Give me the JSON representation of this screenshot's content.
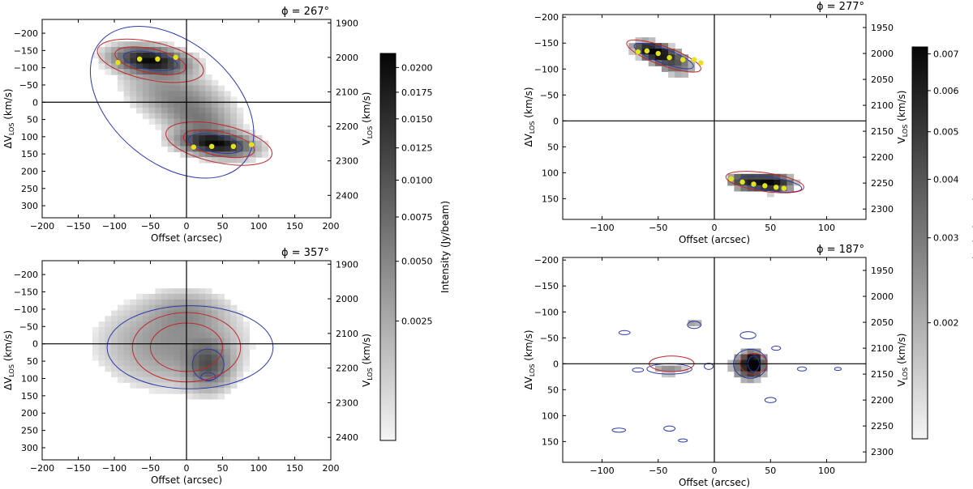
{
  "chart_data": [
    {
      "id": "p267",
      "type": "heatmap",
      "title": "ϕ = 267°",
      "xlabel": "Offset (arcsec)",
      "ylabel": "ΔV_LOS (km/s)",
      "ylabel_right": "V_LOS (km/s)",
      "xlim": [
        -200,
        200
      ],
      "ylim": [
        -240,
        335
      ],
      "y_inverted": true,
      "xticks": [
        -200,
        -150,
        -100,
        -50,
        0,
        50,
        100,
        150,
        200
      ],
      "yticks": [
        -200,
        -150,
        -100,
        -50,
        0,
        50,
        100,
        150,
        200,
        250,
        300
      ],
      "right_ticks": [
        1900,
        2000,
        2100,
        2200,
        2300,
        2400
      ],
      "v_sys": 2130,
      "blobs": [
        {
          "x": -50,
          "y": -120,
          "sx": 28,
          "sy": 22,
          "peak": 0.0205,
          "tilt": 0.2
        },
        {
          "x": 40,
          "y": 120,
          "sx": 28,
          "sy": 20,
          "peak": 0.0205,
          "tilt": 0.2
        },
        {
          "x": -10,
          "y": -10,
          "sx": 40,
          "sy": 45,
          "peak": 0.005,
          "tilt": 0.6
        },
        {
          "x": 20,
          "y": 60,
          "sx": 25,
          "sy": 30,
          "peak": 0.004,
          "tilt": 0.4
        }
      ],
      "red_contours": [
        {
          "x": -50,
          "y": -120,
          "rx": 50,
          "ry": 35,
          "rot": 12
        },
        {
          "x": -50,
          "y": -120,
          "rx": 75,
          "ry": 55,
          "rot": 12
        },
        {
          "x": 45,
          "y": 120,
          "rx": 50,
          "ry": 35,
          "rot": 12
        },
        {
          "x": 45,
          "y": 120,
          "rx": 75,
          "ry": 55,
          "rot": 12
        }
      ],
      "blue_contours": [
        {
          "x": -50,
          "y": -120,
          "rx": 38,
          "ry": 25,
          "rot": 10
        },
        {
          "x": 40,
          "y": 120,
          "rx": 38,
          "ry": 25,
          "rot": 10
        },
        {
          "x": -20,
          "y": 0,
          "rx": 130,
          "ry": 175,
          "rot": 40
        }
      ],
      "points": [
        [
          -95,
          -115
        ],
        [
          -65,
          -125
        ],
        [
          -40,
          -125
        ],
        [
          -15,
          -130
        ],
        [
          10,
          130
        ],
        [
          35,
          128
        ],
        [
          65,
          128
        ],
        [
          90,
          123
        ]
      ],
      "colorbar": {
        "label": "Intensity (Jy/beam)",
        "ticks": [
          0.0025,
          0.005,
          0.0075,
          0.01,
          0.0125,
          0.015,
          0.0175,
          0.02
        ],
        "tick_labels": [
          "0.0025",
          "0.0050",
          "0.0075",
          "0.0100",
          "0.0125",
          "0.0150",
          "0.0175",
          "0.0200"
        ],
        "min": 0.0005,
        "max": 0.0215,
        "scale": "sqrt"
      }
    },
    {
      "id": "p357",
      "type": "heatmap",
      "title": "ϕ = 357°",
      "xlabel": "Offset (arcsec)",
      "ylabel": "ΔV_LOS (km/s)",
      "ylabel_right": "V_LOS (km/s)",
      "xlim": [
        -200,
        200
      ],
      "ylim": [
        -240,
        335
      ],
      "y_inverted": true,
      "xticks": [
        -200,
        -150,
        -100,
        -50,
        0,
        50,
        100,
        150,
        200
      ],
      "yticks": [
        -200,
        -150,
        -100,
        -50,
        0,
        50,
        100,
        150,
        200,
        250,
        300
      ],
      "right_ticks": [
        1900,
        2000,
        2100,
        2200,
        2300,
        2400
      ],
      "v_sys": 2130,
      "blobs": [
        {
          "x": -20,
          "y": 0,
          "sx": 55,
          "sy": 70,
          "peak": 0.004,
          "tilt": 0
        },
        {
          "x": 30,
          "y": 60,
          "sx": 18,
          "sy": 40,
          "peak": 0.009,
          "tilt": 0
        },
        {
          "x": 0,
          "y": -90,
          "sx": 30,
          "sy": 35,
          "peak": 0.003,
          "tilt": 0
        }
      ],
      "red_contours": [
        {
          "x": 0,
          "y": 10,
          "rx": 75,
          "ry": 100,
          "rot": 0
        },
        {
          "x": 0,
          "y": 10,
          "rx": 50,
          "ry": 70,
          "rot": 0
        }
      ],
      "blue_contours": [
        {
          "x": 5,
          "y": 10,
          "rx": 115,
          "ry": 120,
          "rot": 0
        },
        {
          "x": 30,
          "y": 60,
          "rx": 22,
          "ry": 45,
          "rot": 0
        },
        {
          "x": 30,
          "y": 95,
          "rx": 10,
          "ry": 12,
          "rot": 0
        }
      ],
      "points": [],
      "colorbar": null
    },
    {
      "id": "p277",
      "type": "heatmap",
      "title": "ϕ = 277°",
      "xlabel": "Offset (arcsec)",
      "ylabel": "ΔV_LOS (km/s)",
      "ylabel_right": "V_LOS (km/s)",
      "xlim": [
        -135,
        135
      ],
      "ylim": [
        -205,
        190
      ],
      "y_inverted": true,
      "xticks": [
        -100,
        -50,
        0,
        50,
        100
      ],
      "yticks": [
        -200,
        -150,
        -100,
        -50,
        0,
        50,
        100,
        150
      ],
      "right_ticks": [
        1950,
        2000,
        2050,
        2100,
        2150,
        2200,
        2250,
        2300
      ],
      "v_sys": 2130,
      "blobs": [
        {
          "x": -55,
          "y": -135,
          "sx": 12,
          "sy": 12,
          "peak": 0.007,
          "tilt": 0.4
        },
        {
          "x": -35,
          "y": -110,
          "sx": 14,
          "sy": 18,
          "peak": 0.0035,
          "tilt": 0.4
        },
        {
          "x": 50,
          "y": 120,
          "sx": 14,
          "sy": 12,
          "peak": 0.007,
          "tilt": 0
        },
        {
          "x": 25,
          "y": 115,
          "sx": 10,
          "sy": 12,
          "peak": 0.004,
          "tilt": 0
        }
      ],
      "red_contours": [
        {
          "x": -45,
          "y": -125,
          "rx": 35,
          "ry": 18,
          "rot": 20
        },
        {
          "x": 45,
          "y": 118,
          "rx": 35,
          "ry": 18,
          "rot": 8
        }
      ],
      "blue_contours": [
        {
          "x": -45,
          "y": -125,
          "rx": 28,
          "ry": 14,
          "rot": 20
        },
        {
          "x": 50,
          "y": 122,
          "rx": 28,
          "ry": 13,
          "rot": 8
        }
      ],
      "points": [
        [
          -68,
          -133
        ],
        [
          -60,
          -135
        ],
        [
          -50,
          -130
        ],
        [
          -40,
          -122
        ],
        [
          -28,
          -118
        ],
        [
          -18,
          -118
        ],
        [
          -12,
          -112
        ],
        [
          15,
          112
        ],
        [
          25,
          118
        ],
        [
          35,
          122
        ],
        [
          45,
          125
        ],
        [
          55,
          128
        ],
        [
          62,
          130
        ]
      ],
      "colorbar": {
        "label": "Intensity (Jy/beam)",
        "ticks": [
          0.002,
          0.003,
          0.004,
          0.005,
          0.006,
          0.007
        ],
        "tick_labels": [
          "0.002",
          "0.003",
          "0.004",
          "0.005",
          "0.006",
          "0.007"
        ],
        "min": 0.0015,
        "max": 0.0072,
        "scale": "sqrt"
      }
    },
    {
      "id": "p187",
      "type": "heatmap",
      "title": "ϕ = 187°",
      "xlabel": "Offset (arcsec)",
      "ylabel": "ΔV_LOS (km/s)",
      "ylabel_right": "V_LOS (km/s)",
      "xlim": [
        -135,
        135
      ],
      "ylim": [
        -205,
        190
      ],
      "y_inverted": true,
      "xticks": [
        -100,
        -50,
        0,
        50,
        100
      ],
      "yticks": [
        -200,
        -150,
        -100,
        -50,
        0,
        50,
        100,
        150
      ],
      "right_ticks": [
        1950,
        2000,
        2050,
        2100,
        2150,
        2200,
        2250,
        2300
      ],
      "v_sys": 2130,
      "blobs": [
        {
          "x": 35,
          "y": 0,
          "sx": 6,
          "sy": 14,
          "peak": 0.007,
          "tilt": 0
        },
        {
          "x": 28,
          "y": 5,
          "sx": 12,
          "sy": 22,
          "peak": 0.0035,
          "tilt": 0
        },
        {
          "x": -40,
          "y": 10,
          "sx": 15,
          "sy": 12,
          "peak": 0.0025,
          "tilt": 0
        },
        {
          "x": -18,
          "y": -75,
          "sx": 5,
          "sy": 6,
          "peak": 0.003,
          "tilt": 0
        }
      ],
      "red_contours": [
        {
          "x": -38,
          "y": 0,
          "rx": 20,
          "ry": 15,
          "rot": 0
        },
        {
          "x": 35,
          "y": 0,
          "rx": 12,
          "ry": 20,
          "rot": 0
        }
      ],
      "blue_contours": [
        {
          "x": 32,
          "y": 0,
          "rx": 15,
          "ry": 28,
          "rot": 0
        },
        {
          "x": 35,
          "y": 0,
          "rx": 5,
          "ry": 15,
          "rot": 0
        },
        {
          "x": -40,
          "y": 10,
          "rx": 20,
          "ry": 10,
          "rot": 0
        },
        {
          "x": -18,
          "y": -75,
          "rx": 6,
          "ry": 7,
          "rot": 0
        },
        {
          "x": 30,
          "y": -55,
          "rx": 7,
          "ry": 7,
          "rot": 0
        },
        {
          "x": -80,
          "y": -60,
          "rx": 5,
          "ry": 4,
          "rot": 0
        },
        {
          "x": -68,
          "y": 12,
          "rx": 5,
          "ry": 4,
          "rot": 0
        },
        {
          "x": -5,
          "y": 5,
          "rx": 4,
          "ry": 6,
          "rot": 0
        },
        {
          "x": 50,
          "y": 70,
          "rx": 5,
          "ry": 5,
          "rot": 0
        },
        {
          "x": -85,
          "y": 128,
          "rx": 6,
          "ry": 4,
          "rot": 0
        },
        {
          "x": -40,
          "y": 125,
          "rx": 5,
          "ry": 5,
          "rot": 0
        },
        {
          "x": -28,
          "y": 148,
          "rx": 4,
          "ry": 3,
          "rot": 0
        },
        {
          "x": 78,
          "y": 10,
          "rx": 4,
          "ry": 4,
          "rot": 0
        },
        {
          "x": 55,
          "y": -30,
          "rx": 4,
          "ry": 4,
          "rot": 0
        },
        {
          "x": 110,
          "y": 10,
          "rx": 3,
          "ry": 3,
          "rot": 0
        }
      ],
      "points": [],
      "colorbar": null
    }
  ]
}
